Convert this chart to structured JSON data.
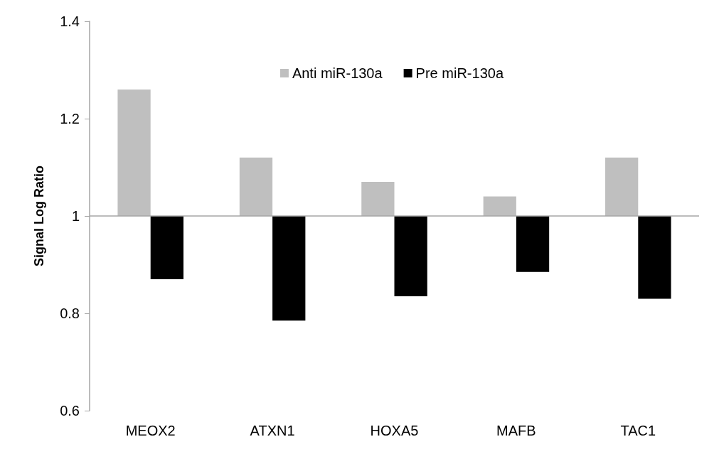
{
  "chart_data": {
    "type": "bar",
    "ylabel": "Signal Log Ratio",
    "categories": [
      "MEOX2",
      "ATXN1",
      "HOXA5",
      "MAFB",
      "TAC1"
    ],
    "series": [
      {
        "name": "Anti miR-130a",
        "color": "#bfbfbf",
        "base": [
          1,
          1,
          1,
          1,
          1
        ],
        "values": [
          0.26,
          0.12,
          0.07,
          0.04,
          0.12
        ]
      },
      {
        "name": "Pre miR-130a",
        "color": "#000000",
        "base": [
          1,
          1,
          1,
          1,
          1
        ],
        "values": [
          -0.13,
          -0.215,
          -0.165,
          -0.115,
          -0.17
        ]
      }
    ],
    "ylim": [
      0.6,
      1.4
    ],
    "yticks": [
      0.6,
      0.8,
      1,
      1.2,
      1.4
    ],
    "grid": false,
    "legend": "top right",
    "ref_lines": [
      {
        "axis": "y",
        "value": 1,
        "color": "#a6a6a6"
      }
    ]
  }
}
